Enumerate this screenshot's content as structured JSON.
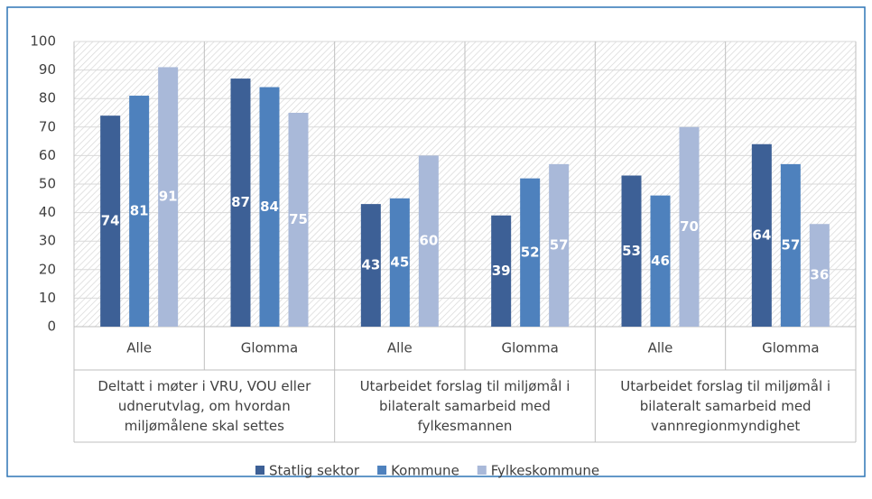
{
  "chart_data": {
    "type": "bar",
    "categories": [
      "Alle",
      "Glomma",
      "Alle",
      "Glomma",
      "Alle",
      "Glomma"
    ],
    "groups": [
      {
        "label": "Deltatt i møter i VRU, VOU eller udnerutvlag, om hvordan miljømålene skal settes",
        "span": 2
      },
      {
        "label": "Utarbeidet forslag til miljømål i bilateralt samarbeid med fylkesmannen",
        "span": 2
      },
      {
        "label": "Utarbeidet forslag til miljømål i bilateralt samarbeid med vannregionmyndighet",
        "span": 2
      }
    ],
    "series": [
      {
        "name": "Statlig sektor",
        "color": "#3d6096",
        "values": [
          74,
          87,
          43,
          39,
          53,
          64
        ]
      },
      {
        "name": "Kommune",
        "color": "#4e81bd",
        "values": [
          81,
          84,
          45,
          52,
          46,
          57
        ]
      },
      {
        "name": "Fylkeskommune",
        "color": "#a9b9d9",
        "values": [
          91,
          75,
          60,
          57,
          70,
          36
        ]
      }
    ],
    "ylim": [
      0,
      100
    ],
    "yticks": [
      0,
      10,
      20,
      30,
      40,
      50,
      60,
      70,
      80,
      90,
      100
    ],
    "grid": true,
    "legend": "bottom"
  }
}
